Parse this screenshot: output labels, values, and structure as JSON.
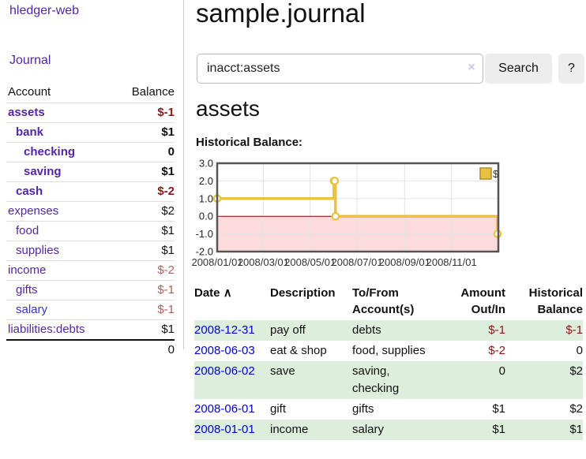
{
  "sidebar": {
    "brand": "hledger-web",
    "nav": {
      "journal": "Journal"
    },
    "table": {
      "account_header": "Account",
      "balance_header": "Balance"
    },
    "accounts": [
      {
        "name": "assets",
        "indent": 1,
        "balance": "$-1",
        "emphasis": true
      },
      {
        "name": "bank",
        "indent": 2,
        "balance": "$1",
        "emphasis": true
      },
      {
        "name": "checking",
        "indent": 3,
        "balance": "0",
        "emphasis": true
      },
      {
        "name": "saving",
        "indent": 3,
        "balance": "$1",
        "emphasis": true
      },
      {
        "name": "cash",
        "indent": 2,
        "balance": "$-2",
        "emphasis": true
      },
      {
        "name": "expenses",
        "indent": 1,
        "balance": "$2"
      },
      {
        "name": "food",
        "indent": 2,
        "balance": "$1"
      },
      {
        "name": "supplies",
        "indent": 2,
        "balance": "$1"
      },
      {
        "name": "income",
        "indent": 1,
        "balance": "$-2"
      },
      {
        "name": "gifts",
        "indent": 2,
        "balance": "$-1"
      },
      {
        "name": "salary",
        "indent": 2,
        "balance": "$-1",
        "alt_link": true
      },
      {
        "name": "liabilities:debts",
        "indent": 1,
        "balance": "$1"
      }
    ],
    "total": "0"
  },
  "main": {
    "title": "sample.journal",
    "search": {
      "value": "inacct:assets",
      "clear_icon": "×",
      "button_label": "Search",
      "help_label": "?"
    },
    "account_heading": "assets",
    "chart_label": "Historical Balance:"
  },
  "chart_data": {
    "type": "line",
    "title": "Historical Balance:",
    "legend": "$",
    "step": true,
    "series": [
      {
        "name": "$",
        "points": [
          [
            "2008-01-01",
            1
          ],
          [
            "2008-06-01",
            2
          ],
          [
            "2008-06-02",
            2
          ],
          [
            "2008-06-03",
            0
          ],
          [
            "2008-12-31",
            -1
          ]
        ]
      }
    ],
    "x_ticks": [
      "2008/01/01",
      "2008/03/01",
      "2008/05/01",
      "2008/07/01",
      "2008/09/01",
      "2008/11/01"
    ],
    "y_ticks": [
      "3.0",
      "2.0",
      "1.0",
      "0.0",
      "-1.0",
      "-2.0"
    ],
    "ylim": [
      -2,
      3
    ],
    "xlim": [
      "2008-01-01",
      "2009-01-01"
    ],
    "grid": true,
    "legend_position": "top-right"
  },
  "register": {
    "sort_icon": "∧",
    "headers": {
      "date": "Date",
      "description": "Description",
      "accounts_line1": "To/From",
      "accounts_line2": "Account(s)",
      "amount_line1": "Amount",
      "amount_line2": "Out/In",
      "hist_line1": "Historical",
      "hist_line2": "Balance"
    },
    "rows": [
      {
        "date": "2008-12-31",
        "description": "pay off",
        "accounts": "debts",
        "amount": "$-1",
        "balance": "$-1"
      },
      {
        "date": "2008-06-03",
        "description": "eat & shop",
        "accounts": "food, supplies",
        "amount": "$-2",
        "balance": "0"
      },
      {
        "date": "2008-06-02",
        "description": "save",
        "accounts": "saving,\nchecking",
        "amount": "0",
        "balance": "$2"
      },
      {
        "date": "2008-06-01",
        "description": "gift",
        "accounts": "gifts",
        "amount": "$1",
        "balance": "$2"
      },
      {
        "date": "2008-01-01",
        "description": "income",
        "accounts": "salary",
        "amount": "$1",
        "balance": "$1"
      }
    ]
  },
  "colors": {
    "link_purple": "#5326a5",
    "link_blue_alt": "#3730d6",
    "date_link_blue": "#0000dd",
    "negative_strong": "#8c1717",
    "negative_soft": "#b25e5e",
    "row_green": "#ddeedd",
    "chart_line": "#e9c23f",
    "chart_legend_border": "#b08d28",
    "chart_negative_bg": "#fbdbdb",
    "chart_zero_line": "#8b0000",
    "chart_border": "#555555",
    "grid_line": "#e3e3e3",
    "button_bg": "#ededed"
  }
}
